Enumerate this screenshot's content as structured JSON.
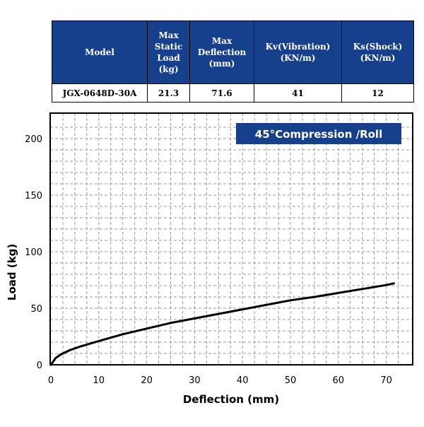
{
  "spec_table": {
    "headers": [
      "Model",
      "Max Static Load (kg)",
      "Max Deflection (mm)",
      "Kv(Vibration) (KN/m)",
      "Ks(Shock) (KN/m)"
    ],
    "header_lines": [
      [
        "Model"
      ],
      [
        "Max",
        "Static",
        "Load",
        "(kg)"
      ],
      [
        "Max",
        "Deflection",
        "(mm)"
      ],
      [
        "Kv(Vibration)",
        "(KN/m)"
      ],
      [
        "Ks(Shock)",
        "(KN/m)"
      ]
    ],
    "row": [
      "JGX-0648D-30A",
      "21.3",
      "71.6",
      "41",
      "12"
    ]
  },
  "colors": {
    "header_bg": "#163f8c",
    "badge_bg": "#163f8c",
    "curve": "#000000",
    "grid": "#9a9a9a"
  },
  "chart_data": {
    "type": "line",
    "title": "45°Compression /Roll",
    "xlabel": "Deflection (mm)",
    "ylabel": "Load (kg)",
    "xlim": [
      0,
      75
    ],
    "ylim": [
      0,
      220
    ],
    "xticks": [
      0,
      10,
      20,
      30,
      40,
      50,
      60,
      70
    ],
    "yticks": [
      0,
      50,
      100,
      150,
      200
    ],
    "grid": true,
    "series": [
      {
        "x": [
          0,
          1,
          2,
          4,
          6,
          8,
          10,
          15,
          20,
          25,
          30,
          35,
          40,
          45,
          50,
          55,
          60,
          65,
          70,
          71.6
        ],
        "y": [
          0,
          6,
          9,
          13,
          16,
          18.5,
          21,
          27,
          32,
          37,
          41,
          45,
          49,
          53,
          57,
          60,
          63.5,
          67,
          70.5,
          72
        ]
      }
    ]
  }
}
